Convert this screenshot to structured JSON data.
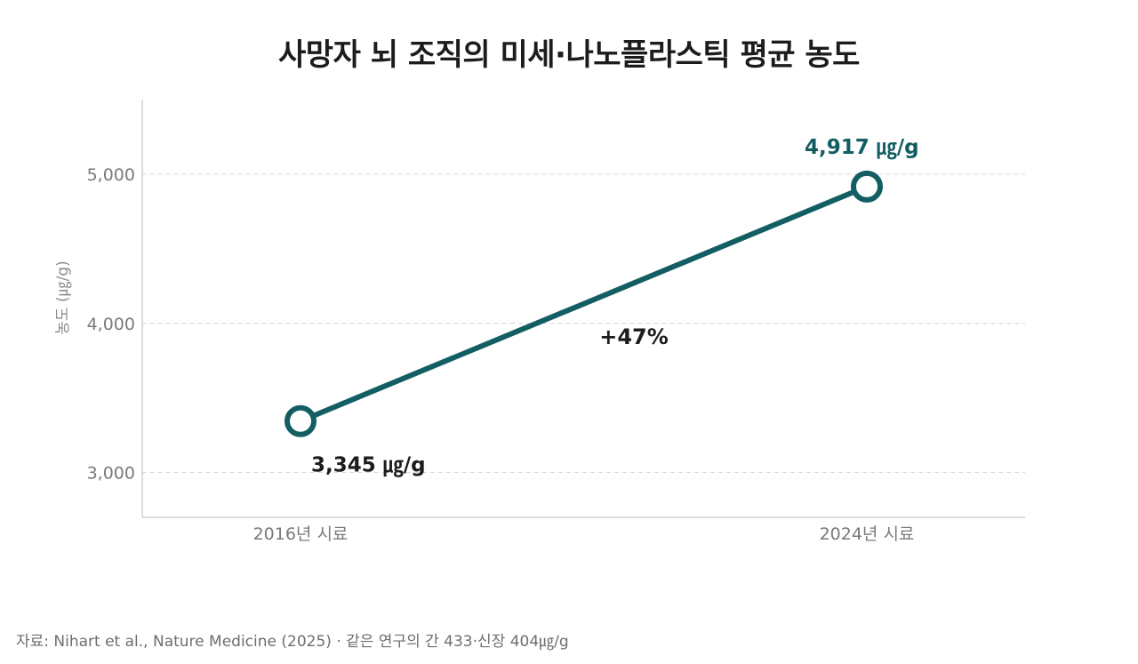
{
  "chart_data": {
    "type": "line",
    "title": "사망자 뇌 조직의 미세·나노플라스틱 평균 농도",
    "ylabel": "농도 (㎍/g)",
    "xlabel": "",
    "categories": [
      "2016년 시료",
      "2024년 시료"
    ],
    "series": [
      {
        "values": [
          3345,
          4917
        ],
        "color": "#135e63"
      }
    ],
    "data_labels": [
      "3,345 ㎍/g",
      "4,917 ㎍/g"
    ],
    "data_label_colors": [
      "#1c1c1c",
      "#135e63"
    ],
    "change_label": "+47%",
    "y_ticks": [
      3000,
      4000,
      5000
    ],
    "y_tick_labels": [
      "3,000",
      "4,000",
      "5,000"
    ],
    "ylim": [
      2700,
      5500
    ],
    "grid": "horizontal dashed",
    "legend": "none"
  },
  "source": "자료: Nihart et al., Nature Medicine (2025) · 같은 연구의 간 433·신장 404㎍/g"
}
